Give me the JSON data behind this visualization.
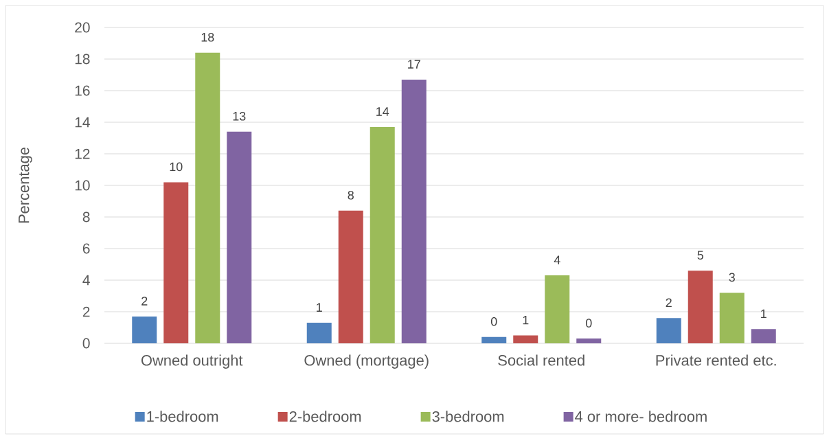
{
  "chart_data": {
    "type": "bar",
    "ylabel": "Percentage",
    "categories": [
      "Owned outright",
      "Owned (mortgage)",
      "Social rented",
      "Private rented etc."
    ],
    "series": [
      {
        "name": "1-bedroom",
        "color": "#4f81bd",
        "values": [
          1.7,
          1.3,
          0.4,
          1.6
        ],
        "value_labels": [
          "2",
          "1",
          "0",
          "2"
        ]
      },
      {
        "name": "2-bedroom",
        "color": "#c0504d",
        "values": [
          10.2,
          8.4,
          0.5,
          4.6
        ],
        "value_labels": [
          "10",
          "8",
          "1",
          "5"
        ]
      },
      {
        "name": "3-bedroom",
        "color": "#9bbb59",
        "values": [
          18.4,
          13.7,
          4.3,
          3.2
        ],
        "value_labels": [
          "18",
          "14",
          "4",
          "3"
        ]
      },
      {
        "name": "4 or more- bedroom",
        "color": "#8064a2",
        "values": [
          13.4,
          16.7,
          0.3,
          0.9
        ],
        "value_labels": [
          "13",
          "17",
          "0",
          "1"
        ]
      }
    ],
    "ylim": [
      0,
      20
    ],
    "yticks": [
      0,
      2,
      4,
      6,
      8,
      10,
      12,
      14,
      16,
      18,
      20
    ],
    "grid": "y",
    "legend": "bottom"
  }
}
